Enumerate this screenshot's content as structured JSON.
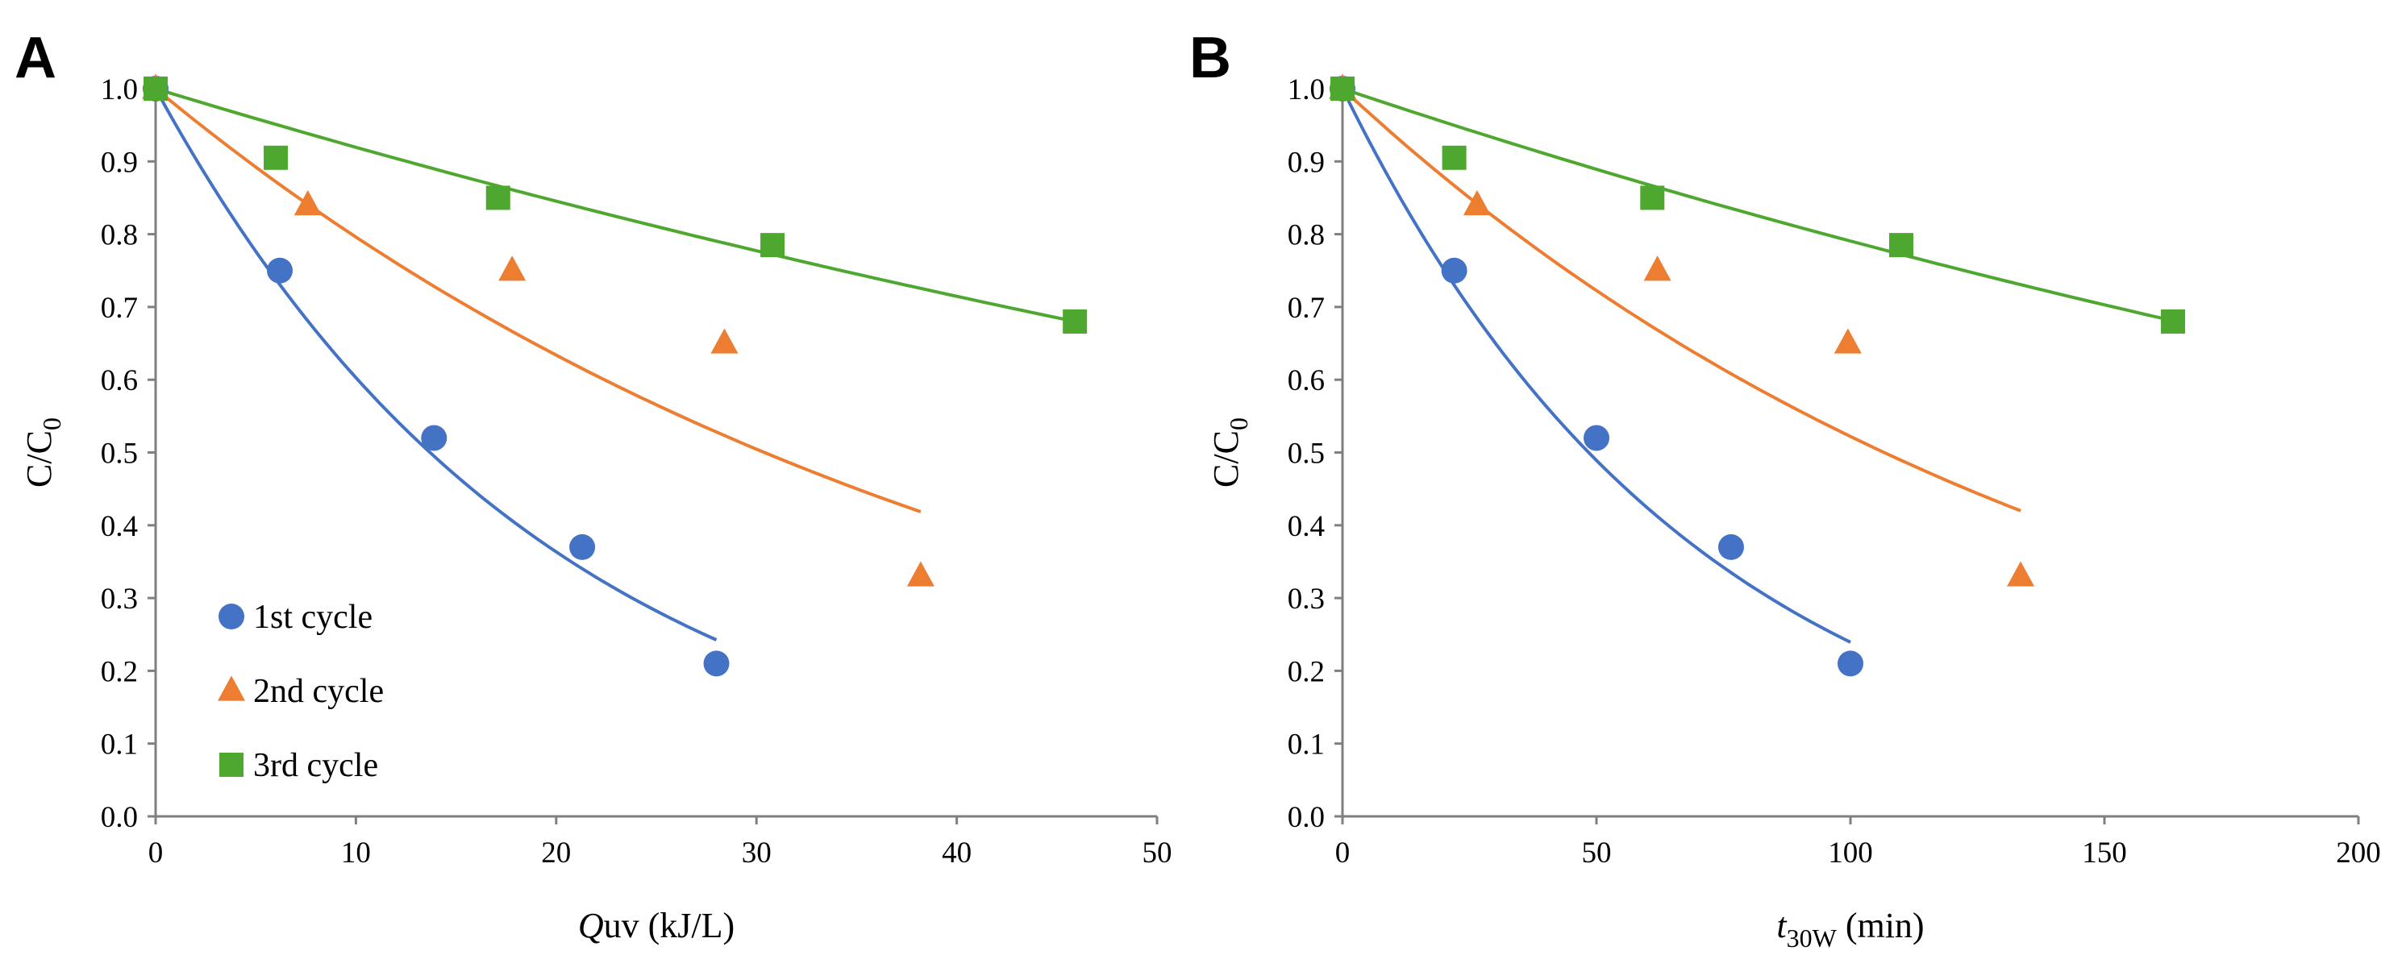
{
  "colors": {
    "series1": "#4472C4",
    "series2": "#ED7D31",
    "series3": "#4EA72E",
    "axis": "#7f7f7f"
  },
  "chart_data": [
    {
      "type": "scatter",
      "panel_label": "A",
      "xlabel_main": "Q",
      "xlabel_rest": "uv (kJ/L)",
      "ylabel_main": "C/C",
      "ylabel_sub": "0",
      "xlim": [
        0,
        50
      ],
      "ylim": [
        0,
        1.0
      ],
      "x_ticks": [
        "0",
        "10",
        "20",
        "30",
        "40",
        "50"
      ],
      "y_ticks": [
        "0.0",
        "0.1",
        "0.2",
        "0.3",
        "0.4",
        "0.5",
        "0.6",
        "0.7",
        "0.8",
        "0.9",
        "1.0"
      ],
      "grid": false,
      "legend_placement": "bottom-left",
      "series": [
        {
          "name": "1st cycle",
          "marker": "circle",
          "color": "#4472C4",
          "x": [
            0,
            6.2,
            13.9,
            21.3,
            28.0
          ],
          "y": [
            1.0,
            0.75,
            0.52,
            0.37,
            0.21
          ],
          "fit": {
            "x": [
              0,
              28.0
            ],
            "k": 0.0506
          }
        },
        {
          "name": "2nd cycle",
          "marker": "triangle",
          "color": "#ED7D31",
          "x": [
            0,
            7.6,
            17.8,
            28.4,
            38.2
          ],
          "y": [
            1.0,
            0.84,
            0.75,
            0.65,
            0.33
          ],
          "fit": {
            "x": [
              0,
              38.2
            ],
            "k": 0.0228
          }
        },
        {
          "name": "3rd cycle",
          "marker": "square",
          "color": "#4EA72E",
          "x": [
            0,
            6.0,
            17.1,
            30.8,
            45.9
          ],
          "y": [
            1.0,
            0.905,
            0.85,
            0.785,
            0.68
          ],
          "fit": {
            "x": [
              0,
              45.9
            ],
            "k": 0.0084
          }
        }
      ]
    },
    {
      "type": "scatter",
      "panel_label": "B",
      "xlabel_main": "t",
      "xlabel_sub": "30W",
      "xlabel_rest": " (min)",
      "ylabel_main": "C/C",
      "ylabel_sub": "0",
      "xlim": [
        0,
        200
      ],
      "ylim": [
        0,
        1.0
      ],
      "x_ticks": [
        "0",
        "50",
        "100",
        "150",
        "200"
      ],
      "y_ticks": [
        "0.0",
        "0.1",
        "0.2",
        "0.3",
        "0.4",
        "0.5",
        "0.6",
        "0.7",
        "0.8",
        "0.9",
        "1.0"
      ],
      "grid": false,
      "series": [
        {
          "marker": "circle",
          "color": "#4472C4",
          "x": [
            0,
            22,
            50,
            76.5,
            100
          ],
          "y": [
            1.0,
            0.75,
            0.52,
            0.37,
            0.21
          ],
          "fit": {
            "x": [
              0,
              100
            ],
            "k": 0.0143
          }
        },
        {
          "marker": "triangle",
          "color": "#ED7D31",
          "x": [
            0,
            26.5,
            62,
            99.5,
            133.5
          ],
          "y": [
            1.0,
            0.84,
            0.75,
            0.65,
            0.33
          ],
          "fit": {
            "x": [
              0,
              133.5
            ],
            "k": 0.0065
          }
        },
        {
          "marker": "square",
          "color": "#4EA72E",
          "x": [
            0,
            22,
            61,
            110,
            163.5
          ],
          "y": [
            1.0,
            0.905,
            0.85,
            0.785,
            0.68
          ],
          "fit": {
            "x": [
              0,
              163.5
            ],
            "k": 0.00235
          }
        }
      ]
    }
  ]
}
